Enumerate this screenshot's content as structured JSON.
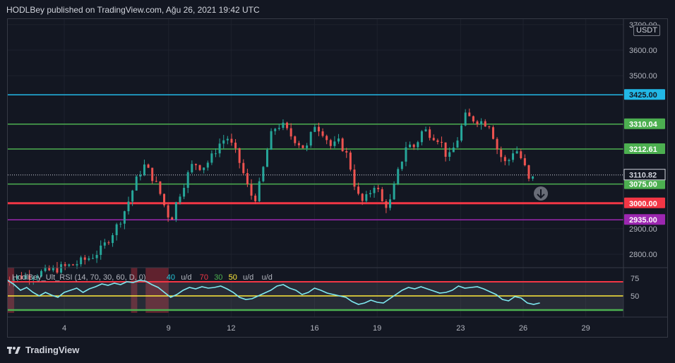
{
  "header": {
    "published": "HODLBey published on TradingView.com, Ağu 26, 2021 19:42 UTC"
  },
  "footer": {
    "brand": "TradingView"
  },
  "chart_data": {
    "type": "candlestick",
    "currency": "USDT",
    "price_axis": {
      "min": 2750,
      "max": 3720,
      "ticks": [
        "2800.00",
        "2900.00",
        "3500.00",
        "3600.00",
        "3700.00"
      ]
    },
    "time_axis": {
      "labels": [
        {
          "text": "4",
          "day": 4
        },
        {
          "text": "9",
          "day": 9
        },
        {
          "text": "12",
          "day": 12
        },
        {
          "text": "16",
          "day": 16
        },
        {
          "text": "19",
          "day": 19
        },
        {
          "text": "23",
          "day": 23
        },
        {
          "text": "26",
          "day": 26
        },
        {
          "text": "29",
          "day": 29
        }
      ]
    },
    "levels": [
      {
        "price": 3425.0,
        "label": "3425.00",
        "color": "#22b8e6"
      },
      {
        "price": 3310.04,
        "label": "3310.04",
        "color": "#4caf50"
      },
      {
        "price": 3212.61,
        "label": "3212.61",
        "color": "#4caf50"
      },
      {
        "price": 3075.0,
        "label": "3075.00",
        "color": "#4caf50"
      },
      {
        "price": 3000.0,
        "label": "3000.00",
        "color": "#f23645"
      },
      {
        "price": 2935.0,
        "label": "2935.00",
        "color": "#9c27b0"
      }
    ],
    "last_price": {
      "price": 3110.82,
      "label": "3110.82"
    },
    "price_path": [
      [
        1.0,
        2700
      ],
      [
        2.5,
        2720
      ],
      [
        3.5,
        2740
      ],
      [
        4.5,
        2760
      ],
      [
        5.3,
        2790
      ],
      [
        5.8,
        2820
      ],
      [
        6.2,
        2870
      ],
      [
        6.6,
        2920
      ],
      [
        7.0,
        2990
      ],
      [
        7.4,
        3080
      ],
      [
        7.8,
        3150
      ],
      [
        8.1,
        3120
      ],
      [
        8.5,
        3060
      ],
      [
        8.8,
        2990
      ],
      [
        9.1,
        2930
      ],
      [
        9.4,
        3010
      ],
      [
        9.8,
        3090
      ],
      [
        10.2,
        3160
      ],
      [
        10.6,
        3140
      ],
      [
        11.0,
        3170
      ],
      [
        11.4,
        3230
      ],
      [
        11.8,
        3260
      ],
      [
        12.2,
        3200
      ],
      [
        12.5,
        3140
      ],
      [
        12.8,
        3060
      ],
      [
        13.1,
        3010
      ],
      [
        13.4,
        3080
      ],
      [
        13.7,
        3200
      ],
      [
        14.0,
        3290
      ],
      [
        14.4,
        3310
      ],
      [
        14.8,
        3270
      ],
      [
        15.2,
        3240
      ],
      [
        15.6,
        3210
      ],
      [
        16.0,
        3310
      ],
      [
        16.4,
        3280
      ],
      [
        16.8,
        3220
      ],
      [
        17.2,
        3240
      ],
      [
        17.6,
        3180
      ],
      [
        17.9,
        3080
      ],
      [
        18.2,
        3000
      ],
      [
        18.5,
        3020
      ],
      [
        18.9,
        3080
      ],
      [
        19.3,
        2990
      ],
      [
        19.6,
        3000
      ],
      [
        20.0,
        3120
      ],
      [
        20.4,
        3230
      ],
      [
        20.8,
        3220
      ],
      [
        21.2,
        3290
      ],
      [
        21.6,
        3270
      ],
      [
        22.0,
        3250
      ],
      [
        22.4,
        3170
      ],
      [
        22.8,
        3240
      ],
      [
        23.2,
        3340
      ],
      [
        23.6,
        3330
      ],
      [
        24.0,
        3320
      ],
      [
        24.4,
        3310
      ],
      [
        24.8,
        3200
      ],
      [
        25.2,
        3150
      ],
      [
        25.6,
        3220
      ],
      [
        26.0,
        3160
      ],
      [
        26.3,
        3080
      ],
      [
        26.6,
        3110
      ]
    ],
    "indicator": {
      "label": "HodlBey_Ult_RSI (14, 70, 30, 60, D, 0)",
      "levels_text": [
        "40",
        "u/d",
        "70",
        "30",
        "50",
        "u/d",
        "u/d"
      ],
      "levels_colors": [
        "#26c6da",
        "#b2b5be",
        "#f23645",
        "#4caf50",
        "#ffeb3b",
        "#b2b5be",
        "#b2b5be"
      ],
      "axis_ticks": [
        "75",
        "50"
      ],
      "upper": 70,
      "lower": 30,
      "mid": 50,
      "values": [
        [
          1.0,
          66
        ],
        [
          1.3,
          72
        ],
        [
          1.6,
          66
        ],
        [
          1.9,
          58
        ],
        [
          2.2,
          62
        ],
        [
          2.5,
          55
        ],
        [
          2.8,
          50
        ],
        [
          3.1,
          55
        ],
        [
          3.4,
          51
        ],
        [
          3.7,
          48
        ],
        [
          4.0,
          55
        ],
        [
          4.3,
          58
        ],
        [
          4.6,
          61
        ],
        [
          4.9,
          55
        ],
        [
          5.2,
          60
        ],
        [
          5.5,
          63
        ],
        [
          5.8,
          67
        ],
        [
          6.1,
          65
        ],
        [
          6.4,
          68
        ],
        [
          6.7,
          66
        ],
        [
          7.0,
          70
        ],
        [
          7.3,
          69
        ],
        [
          7.6,
          72
        ],
        [
          7.9,
          71
        ],
        [
          8.2,
          66
        ],
        [
          8.5,
          62
        ],
        [
          8.8,
          55
        ],
        [
          9.1,
          48
        ],
        [
          9.4,
          52
        ],
        [
          9.7,
          58
        ],
        [
          10.0,
          62
        ],
        [
          10.3,
          60
        ],
        [
          10.6,
          63
        ],
        [
          10.9,
          61
        ],
        [
          11.2,
          62
        ],
        [
          11.5,
          64
        ],
        [
          11.8,
          60
        ],
        [
          12.1,
          55
        ],
        [
          12.4,
          48
        ],
        [
          12.7,
          45
        ],
        [
          13.0,
          46
        ],
        [
          13.3,
          50
        ],
        [
          13.6,
          54
        ],
        [
          13.9,
          58
        ],
        [
          14.2,
          64
        ],
        [
          14.5,
          66
        ],
        [
          14.8,
          61
        ],
        [
          15.1,
          58
        ],
        [
          15.4,
          52
        ],
        [
          15.7,
          55
        ],
        [
          16.0,
          61
        ],
        [
          16.3,
          58
        ],
        [
          16.6,
          54
        ],
        [
          16.9,
          52
        ],
        [
          17.2,
          50
        ],
        [
          17.5,
          48
        ],
        [
          17.8,
          42
        ],
        [
          18.1,
          38
        ],
        [
          18.4,
          40
        ],
        [
          18.7,
          44
        ],
        [
          19.0,
          41
        ],
        [
          19.3,
          40
        ],
        [
          19.6,
          46
        ],
        [
          19.9,
          52
        ],
        [
          20.2,
          58
        ],
        [
          20.5,
          62
        ],
        [
          20.8,
          60
        ],
        [
          21.1,
          63
        ],
        [
          21.4,
          60
        ],
        [
          21.7,
          57
        ],
        [
          22.0,
          54
        ],
        [
          22.3,
          55
        ],
        [
          22.6,
          58
        ],
        [
          22.9,
          64
        ],
        [
          23.2,
          61
        ],
        [
          23.5,
          62
        ],
        [
          23.8,
          63
        ],
        [
          24.1,
          60
        ],
        [
          24.4,
          56
        ],
        [
          24.7,
          52
        ],
        [
          25.0,
          45
        ],
        [
          25.3,
          43
        ],
        [
          25.6,
          49
        ],
        [
          25.9,
          47
        ],
        [
          26.2,
          40
        ],
        [
          26.5,
          38
        ],
        [
          26.8,
          40
        ]
      ],
      "red_zones": [
        [
          0.9,
          1.6
        ],
        [
          7.2,
          7.5
        ],
        [
          7.9,
          9.0
        ]
      ]
    }
  }
}
